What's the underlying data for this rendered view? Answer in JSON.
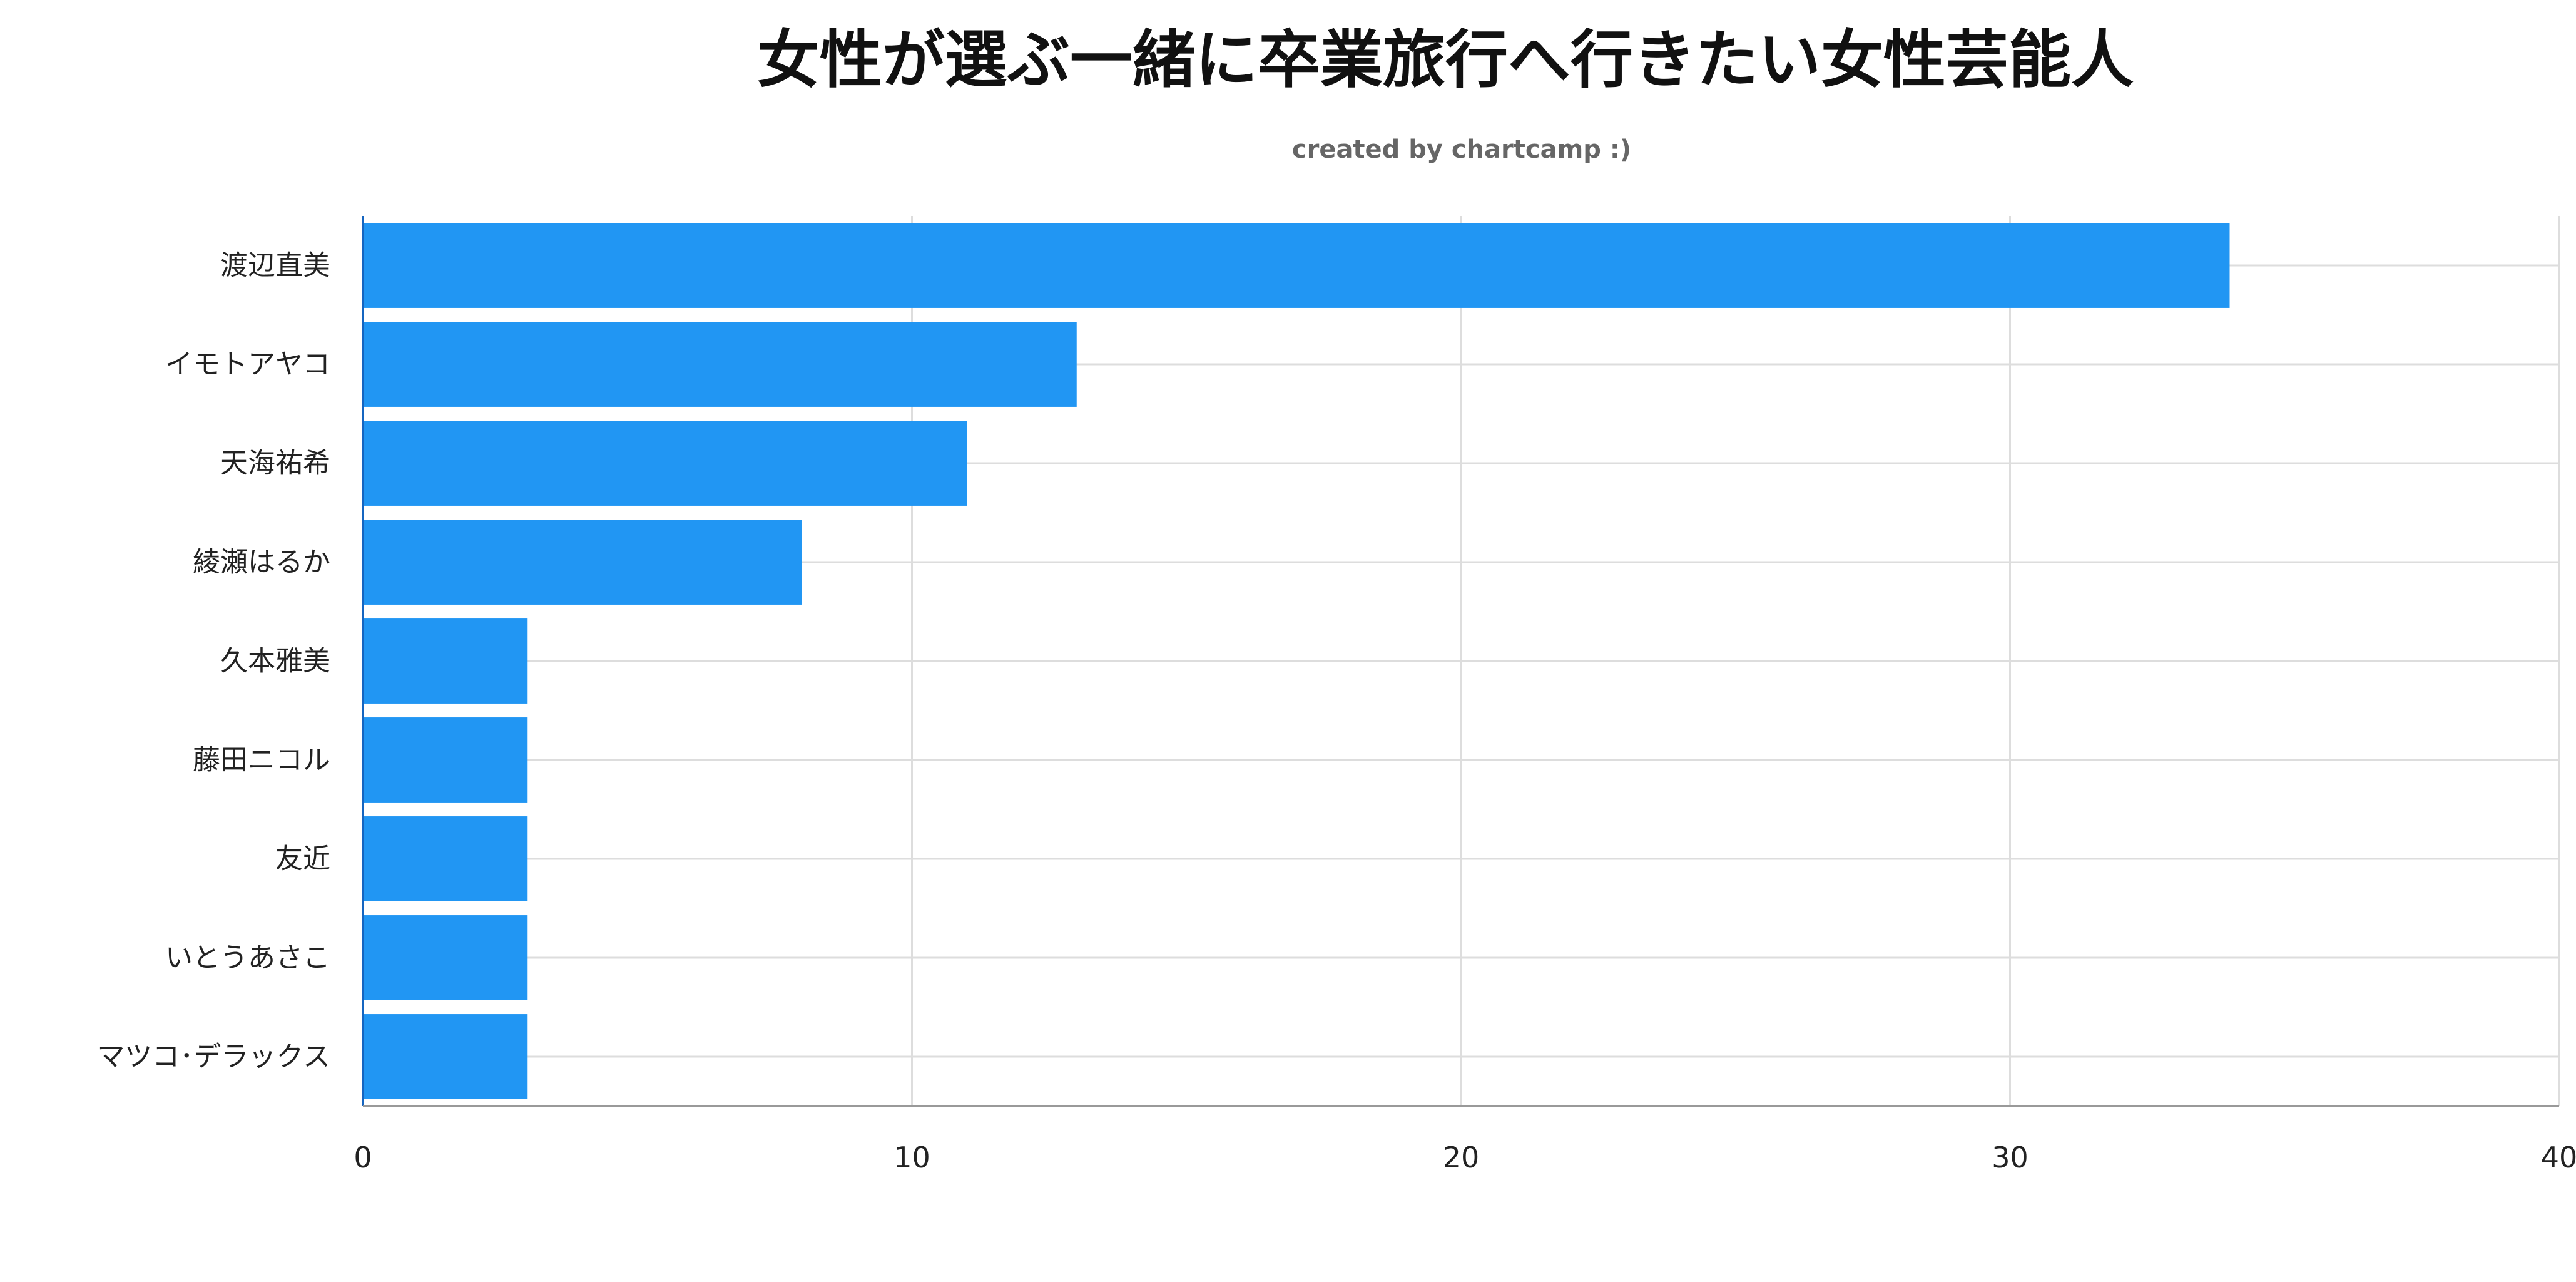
{
  "chart_data": {
    "type": "bar",
    "orientation": "horizontal",
    "title": "女性が選ぶ一緒に卒業旅行へ行きたい女性芸能人",
    "subtitle": "created by chartcamp :)",
    "categories": [
      "渡辺直美",
      "イモトアヤコ",
      "天海祐希",
      "綾瀬はるか",
      "久本雅美",
      "藤田ニコル",
      "友近",
      "いとうあさこ",
      "マツコ･デラックス"
    ],
    "values": [
      34,
      13,
      11,
      8,
      3,
      3,
      3,
      3,
      3
    ],
    "xlim": [
      0,
      40
    ],
    "xticks": [
      "0",
      "10",
      "20",
      "30",
      "40"
    ],
    "xlabel": "",
    "ylabel": "",
    "grid": true,
    "legend": "none",
    "colors": {
      "bar": "#2196F3",
      "bar_edge": "#1565C0",
      "grid": "#dddddd",
      "axis": "#999999"
    }
  }
}
